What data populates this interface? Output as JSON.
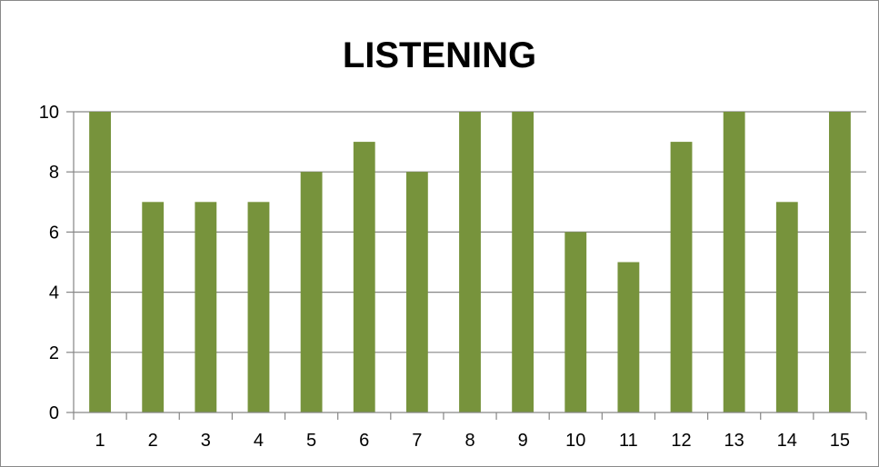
{
  "chart_data": {
    "type": "bar",
    "title": "LISTENING",
    "xlabel": "",
    "ylabel": "",
    "categories": [
      "1",
      "2",
      "3",
      "4",
      "5",
      "6",
      "7",
      "8",
      "9",
      "10",
      "11",
      "12",
      "13",
      "14",
      "15"
    ],
    "values": [
      10,
      7,
      7,
      7,
      8,
      9,
      8,
      10,
      10,
      6,
      5,
      9,
      10,
      7,
      10
    ],
    "ylim": [
      0,
      10
    ],
    "yticks": [
      "0",
      "2",
      "4",
      "6",
      "8",
      "10"
    ],
    "grid": true,
    "legend": "none",
    "colors": {
      "bar": "#77933C",
      "grid": "#868686",
      "axis": "#868686"
    }
  }
}
